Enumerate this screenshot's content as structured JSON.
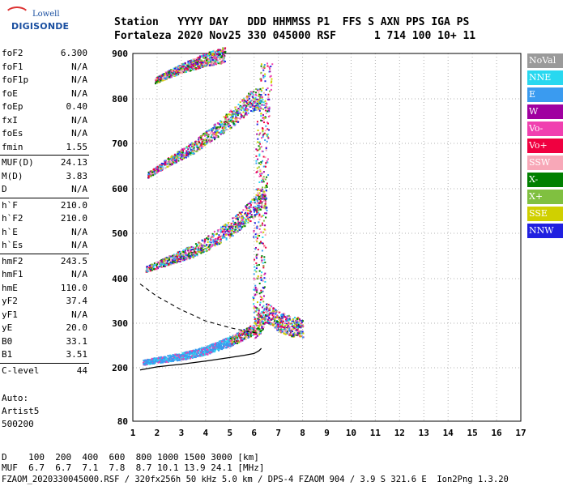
{
  "logo": {
    "line1": "Lowell",
    "line2": "DIGISONDE"
  },
  "header": {
    "line1": "Station   YYYY DAY   DDD HHMMSS P1  FFS S AXN PPS IGA PS",
    "line2": "Fortaleza 2020 Nov25 330 045000 RSF      1 714 100 10+ 11"
  },
  "params_groups": [
    [
      {
        "name": "foF2",
        "value": "6.300"
      },
      {
        "name": "foF1",
        "value": "N/A"
      },
      {
        "name": "foF1p",
        "value": "N/A"
      },
      {
        "name": "foE",
        "value": "N/A"
      },
      {
        "name": "foEp",
        "value": "0.40"
      },
      {
        "name": "fxI",
        "value": "N/A"
      },
      {
        "name": "foEs",
        "value": "N/A"
      },
      {
        "name": "fmin",
        "value": "1.55"
      }
    ],
    [
      {
        "name": "MUF(D)",
        "value": "24.13"
      },
      {
        "name": "M(D)",
        "value": "3.83"
      },
      {
        "name": "D",
        "value": "N/A"
      }
    ],
    [
      {
        "name": "h`F",
        "value": "210.0"
      },
      {
        "name": "h`F2",
        "value": "210.0"
      },
      {
        "name": "h`E",
        "value": "N/A"
      },
      {
        "name": "h`Es",
        "value": "N/A"
      }
    ],
    [
      {
        "name": "hmF2",
        "value": "243.5"
      },
      {
        "name": "hmF1",
        "value": "N/A"
      },
      {
        "name": "hmE",
        "value": "110.0"
      },
      {
        "name": "yF2",
        "value": "37.4"
      },
      {
        "name": "yF1",
        "value": "N/A"
      },
      {
        "name": "yE",
        "value": "20.0"
      },
      {
        "name": "B0",
        "value": "33.1"
      },
      {
        "name": "B1",
        "value": "3.51"
      }
    ],
    [
      {
        "name": "C-level",
        "value": "44"
      }
    ]
  ],
  "auto": {
    "line1": "Auto:",
    "line2": "Artist5",
    "line3": "500200"
  },
  "bottom": {
    "d_row": "D    100  200  400  600  800 1000 1500 3000 [km]",
    "muf_row": "MUF  6.7  6.7  7.1  7.8  8.7 10.1 13.9 24.1 [MHz]",
    "file_row": "FZAOM_2020330045000.RSF / 320fx256h 50 kHz 5.0 km / DPS-4 FZAOM 904 / 3.9 S 321.6 E  Ion2Png 1.3.20"
  },
  "legend": [
    {
      "label": "NoVal",
      "color": "#9a9a9a"
    },
    {
      "label": "NNE",
      "color": "#28d8f0"
    },
    {
      "label": "E",
      "color": "#3a9bf0"
    },
    {
      "label": "W",
      "color": "#a000a0"
    },
    {
      "label": "Vo-",
      "color": "#f040b0"
    },
    {
      "label": "Vo+",
      "color": "#f00040"
    },
    {
      "label": "SSW",
      "color": "#f8a8b8"
    },
    {
      "label": "X-",
      "color": "#008000"
    },
    {
      "label": "X+",
      "color": "#80c040"
    },
    {
      "label": "SSE",
      "color": "#d0d000"
    },
    {
      "label": "NNW",
      "color": "#2020e0"
    }
  ],
  "chart_data": {
    "type": "scatter",
    "title": "",
    "xlabel": "",
    "ylabel": "",
    "xlim": [
      1,
      17
    ],
    "ylim": [
      80,
      900
    ],
    "x_ticks": [
      1,
      2,
      3,
      4,
      5,
      6,
      7,
      8,
      9,
      10,
      11,
      12,
      13,
      14,
      15,
      16,
      17
    ],
    "y_ticks": [
      80,
      200,
      300,
      400,
      500,
      600,
      700,
      800,
      900
    ],
    "grid": true,
    "traces": [
      {
        "name": "echo-1",
        "points": [
          [
            1.4,
            212
          ],
          [
            2.0,
            217
          ],
          [
            3.0,
            225
          ],
          [
            4.0,
            238
          ],
          [
            5.0,
            258
          ],
          [
            5.5,
            272
          ],
          [
            6.0,
            285
          ],
          [
            6.3,
            300
          ],
          [
            6.5,
            320
          ],
          [
            7.0,
            300
          ],
          [
            7.5,
            290
          ],
          [
            8.0,
            285
          ]
        ]
      },
      {
        "name": "echo-2",
        "points": [
          [
            1.5,
            420
          ],
          [
            2.5,
            440
          ],
          [
            3.5,
            460
          ],
          [
            4.5,
            490
          ],
          [
            5.3,
            520
          ],
          [
            5.8,
            545
          ],
          [
            6.2,
            570
          ],
          [
            6.5,
            580
          ]
        ]
      },
      {
        "name": "echo-3",
        "points": [
          [
            1.6,
            630
          ],
          [
            2.5,
            660
          ],
          [
            3.5,
            690
          ],
          [
            4.5,
            730
          ],
          [
            5.2,
            760
          ],
          [
            5.8,
            790
          ],
          [
            6.3,
            800
          ]
        ]
      },
      {
        "name": "echo-4",
        "points": [
          [
            1.9,
            840
          ],
          [
            2.5,
            855
          ],
          [
            3.2,
            870
          ],
          [
            4.0,
            885
          ],
          [
            4.8,
            895
          ]
        ]
      },
      {
        "name": "vertical-spread",
        "points": [
          [
            6.1,
            300
          ],
          [
            6.2,
            400
          ],
          [
            6.2,
            500
          ],
          [
            6.3,
            600
          ],
          [
            6.3,
            700
          ],
          [
            6.4,
            800
          ],
          [
            6.5,
            880
          ]
        ]
      }
    ],
    "profile_curve": [
      [
        1.3,
        195
      ],
      [
        2.0,
        202
      ],
      [
        3.0,
        208
      ],
      [
        4.0,
        215
      ],
      [
        5.0,
        223
      ],
      [
        5.6,
        228
      ],
      [
        6.0,
        232
      ],
      [
        6.2,
        238
      ],
      [
        6.3,
        243.5
      ]
    ],
    "dashed_curve": [
      [
        1.3,
        388
      ],
      [
        2.0,
        360
      ],
      [
        3.0,
        330
      ],
      [
        4.0,
        305
      ],
      [
        5.0,
        290
      ],
      [
        5.6,
        283
      ],
      [
        6.1,
        278
      ]
    ]
  }
}
